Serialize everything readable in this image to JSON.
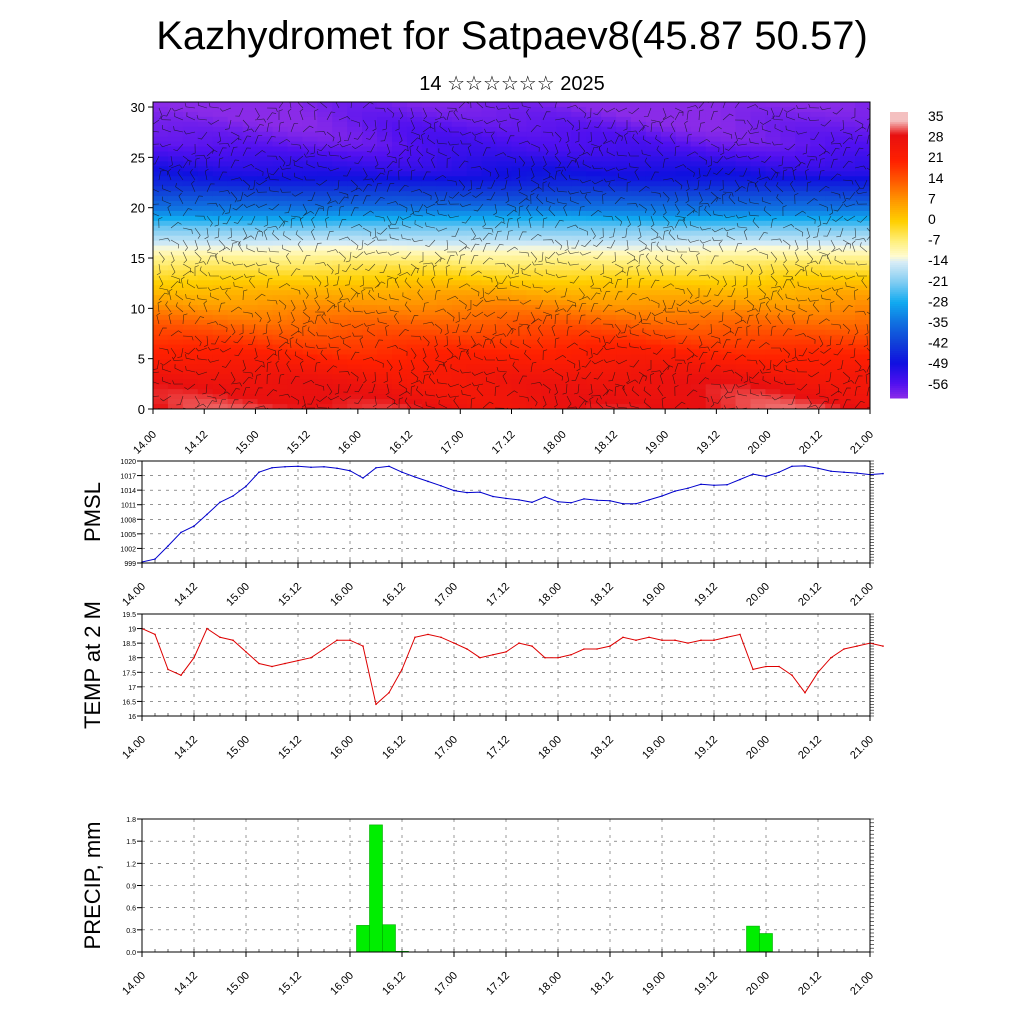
{
  "title": "Kazhydromet for Satpaev8(45.87 50.57)",
  "subtitle": "14 ☆☆☆☆☆☆ 2025",
  "time_ticks": [
    "14.00",
    "14.12",
    "15.00",
    "15.12",
    "16.00",
    "16.12",
    "17.00",
    "17.12",
    "18.00",
    "18.12",
    "19.00",
    "19.12",
    "20.00",
    "20.12",
    "21.00"
  ],
  "colors": {
    "pmsl_line": "#0000cc",
    "temp_line": "#dd0000",
    "precip_bar": "#00ee00",
    "precip_outline": "#00aa00"
  },
  "colorbar": {
    "labels": [
      "35",
      "28",
      "21",
      "14",
      "7",
      "0",
      "-7",
      "-14",
      "-21",
      "-28",
      "-35",
      "-42",
      "-49",
      "-56"
    ],
    "stops": [
      {
        "v": 35,
        "c": "#f4c0c0"
      },
      {
        "v": 30,
        "c": "#e81010"
      },
      {
        "v": 21,
        "c": "#ff2000"
      },
      {
        "v": 14,
        "c": "#ff5a00"
      },
      {
        "v": 7,
        "c": "#ff9a00"
      },
      {
        "v": 0,
        "c": "#ffd000"
      },
      {
        "v": -7,
        "c": "#fff080"
      },
      {
        "v": -12,
        "c": "#fffbd0"
      },
      {
        "v": -14,
        "c": "#d8ecf6"
      },
      {
        "v": -21,
        "c": "#80ccf2"
      },
      {
        "v": -28,
        "c": "#10aaf0"
      },
      {
        "v": -35,
        "c": "#1070e0"
      },
      {
        "v": -42,
        "c": "#1040d8"
      },
      {
        "v": -49,
        "c": "#1010e0"
      },
      {
        "v": -56,
        "c": "#5010f0"
      },
      {
        "v": -61,
        "c": "#8a2be8"
      }
    ]
  },
  "chart_data": [
    {
      "type": "heatmap",
      "title": "",
      "xlabel": "",
      "ylabel": "",
      "x_ticks": [
        "14.00",
        "14.12",
        "15.00",
        "15.12",
        "16.00",
        "16.12",
        "17.00",
        "17.12",
        "18.00",
        "18.12",
        "19.00",
        "19.12",
        "20.00",
        "20.12",
        "21.00"
      ],
      "y_ticks": [
        0,
        5,
        10,
        15,
        20,
        25,
        30
      ],
      "ylim": [
        0,
        30.5
      ],
      "z_unit_range": [
        -61,
        38
      ],
      "temperature_by_level": [
        {
          "level": 0,
          "value": 30
        },
        {
          "level": 3,
          "value": 27
        },
        {
          "level": 6,
          "value": 20
        },
        {
          "level": 9,
          "value": 12
        },
        {
          "level": 12,
          "value": 3
        },
        {
          "level": 15,
          "value": -8
        },
        {
          "level": 18,
          "value": -22
        },
        {
          "level": 20,
          "value": -35
        },
        {
          "level": 23,
          "value": -49
        },
        {
          "level": 26,
          "value": -56
        },
        {
          "level": 30.5,
          "value": -61
        }
      ],
      "overlay": "wind barbs"
    },
    {
      "type": "line",
      "ylabel": "PMSL",
      "ylim": [
        999,
        1020
      ],
      "y_ticks": [
        999,
        1002,
        1005,
        1008,
        1011,
        1014,
        1017,
        1020
      ],
      "x_step_hours": 3,
      "series": [
        {
          "values": [
            999.2,
            999.8,
            1002.5,
            1005.3,
            1006.6,
            1009.0,
            1011.5,
            1012.8,
            1014.8,
            1017.7,
            1018.6,
            1018.8,
            1018.9,
            1018.7,
            1018.8,
            1018.5,
            1018.0,
            1016.5,
            1018.6,
            1018.9,
            1017.7,
            1016.7,
            1015.8,
            1014.9,
            1013.9,
            1013.5,
            1013.6,
            1012.7,
            1012.3,
            1012.0,
            1011.5,
            1012.6,
            1011.6,
            1011.4,
            1012.2,
            1011.9,
            1011.8,
            1011.2,
            1011.2,
            1012.0,
            1012.8,
            1013.8,
            1014.4,
            1015.2,
            1015.0,
            1015.1,
            1016.2,
            1017.3,
            1016.8,
            1017.7,
            1018.9,
            1019.0,
            1018.5,
            1017.9,
            1017.7,
            1017.5,
            1017.2,
            1017.4
          ]
        }
      ]
    },
    {
      "type": "line",
      "ylabel": "TEMP at 2 M",
      "ylim": [
        16.0,
        19.5
      ],
      "y_ticks": [
        16.0,
        16.5,
        17.0,
        17.5,
        18.0,
        18.5,
        19.0,
        19.5
      ],
      "x_step_hours": 3,
      "series": [
        {
          "values": [
            19.0,
            18.8,
            17.6,
            17.4,
            18.0,
            19.0,
            18.7,
            18.6,
            18.2,
            17.8,
            17.7,
            17.8,
            17.9,
            18.0,
            18.3,
            18.6,
            18.6,
            18.4,
            16.4,
            16.8,
            17.6,
            18.7,
            18.8,
            18.7,
            18.5,
            18.3,
            18.0,
            18.1,
            18.2,
            18.5,
            18.4,
            18.0,
            18.0,
            18.1,
            18.3,
            18.3,
            18.4,
            18.7,
            18.6,
            18.7,
            18.6,
            18.6,
            18.5,
            18.6,
            18.6,
            18.7,
            18.8,
            17.6,
            17.7,
            17.7,
            17.4,
            16.8,
            17.5,
            18.0,
            18.3,
            18.4,
            18.5,
            18.4
          ]
        }
      ]
    },
    {
      "type": "bar",
      "ylabel": "PRECIP, mm",
      "ylim": [
        0.0,
        1.8
      ],
      "y_ticks": [
        "0.0",
        "0.3",
        "0.6",
        "0.9",
        "1.2",
        "1.5",
        "1.8"
      ],
      "x_step_hours": 3,
      "series": [
        {
          "values": [
            0,
            0,
            0,
            0,
            0,
            0,
            0,
            0,
            0,
            0,
            0,
            0,
            0,
            0,
            0,
            0,
            0,
            0.36,
            1.72,
            0.37,
            0.01,
            0,
            0,
            0,
            0,
            0,
            0,
            0,
            0,
            0,
            0,
            0,
            0,
            0,
            0,
            0,
            0,
            0,
            0,
            0,
            0,
            0,
            0,
            0,
            0,
            0,
            0,
            0.35,
            0.25,
            0.0,
            0,
            0,
            0,
            0,
            0,
            0,
            0
          ]
        }
      ]
    }
  ]
}
